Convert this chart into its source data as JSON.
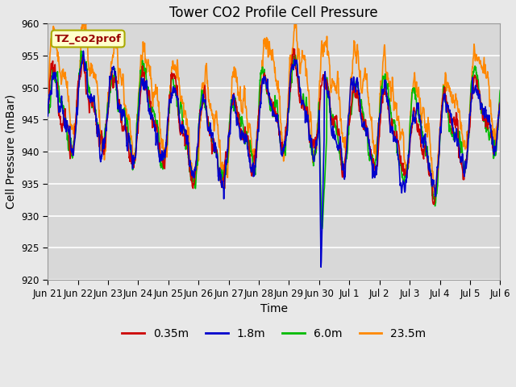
{
  "title": "Tower CO2 Profile Cell Pressure",
  "xlabel": "Time",
  "ylabel": "Cell Pressure (mBar)",
  "ylim": [
    920,
    960
  ],
  "yticks": [
    920,
    925,
    930,
    935,
    940,
    945,
    950,
    955,
    960
  ],
  "xtick_labels": [
    "Jun 21",
    "Jun 22",
    "Jun 23",
    "Jun 24",
    "Jun 25",
    "Jun 26",
    "Jun 27",
    "Jun 28",
    "Jun 29",
    "Jun 30",
    "Jul 1",
    "Jul 2",
    "Jul 3",
    "Jul 4",
    "Jul 5",
    "Jul 6"
  ],
  "legend_labels": [
    "0.35m",
    "1.8m",
    "6.0m",
    "23.5m"
  ],
  "colors": [
    "#cc0000",
    "#0000cc",
    "#00bb00",
    "#ff8800"
  ],
  "annotation_text": "TZ_co2prof",
  "annotation_color": "#990000",
  "annotation_bg": "#ffffcc",
  "annotation_edge": "#aaaa00",
  "fig_bg": "#e8e8e8",
  "plot_bg": "#d8d8d8",
  "grid_color": "#c0c0c0",
  "title_fontsize": 12,
  "axis_fontsize": 10,
  "tick_fontsize": 8.5,
  "linewidth": 1.2
}
